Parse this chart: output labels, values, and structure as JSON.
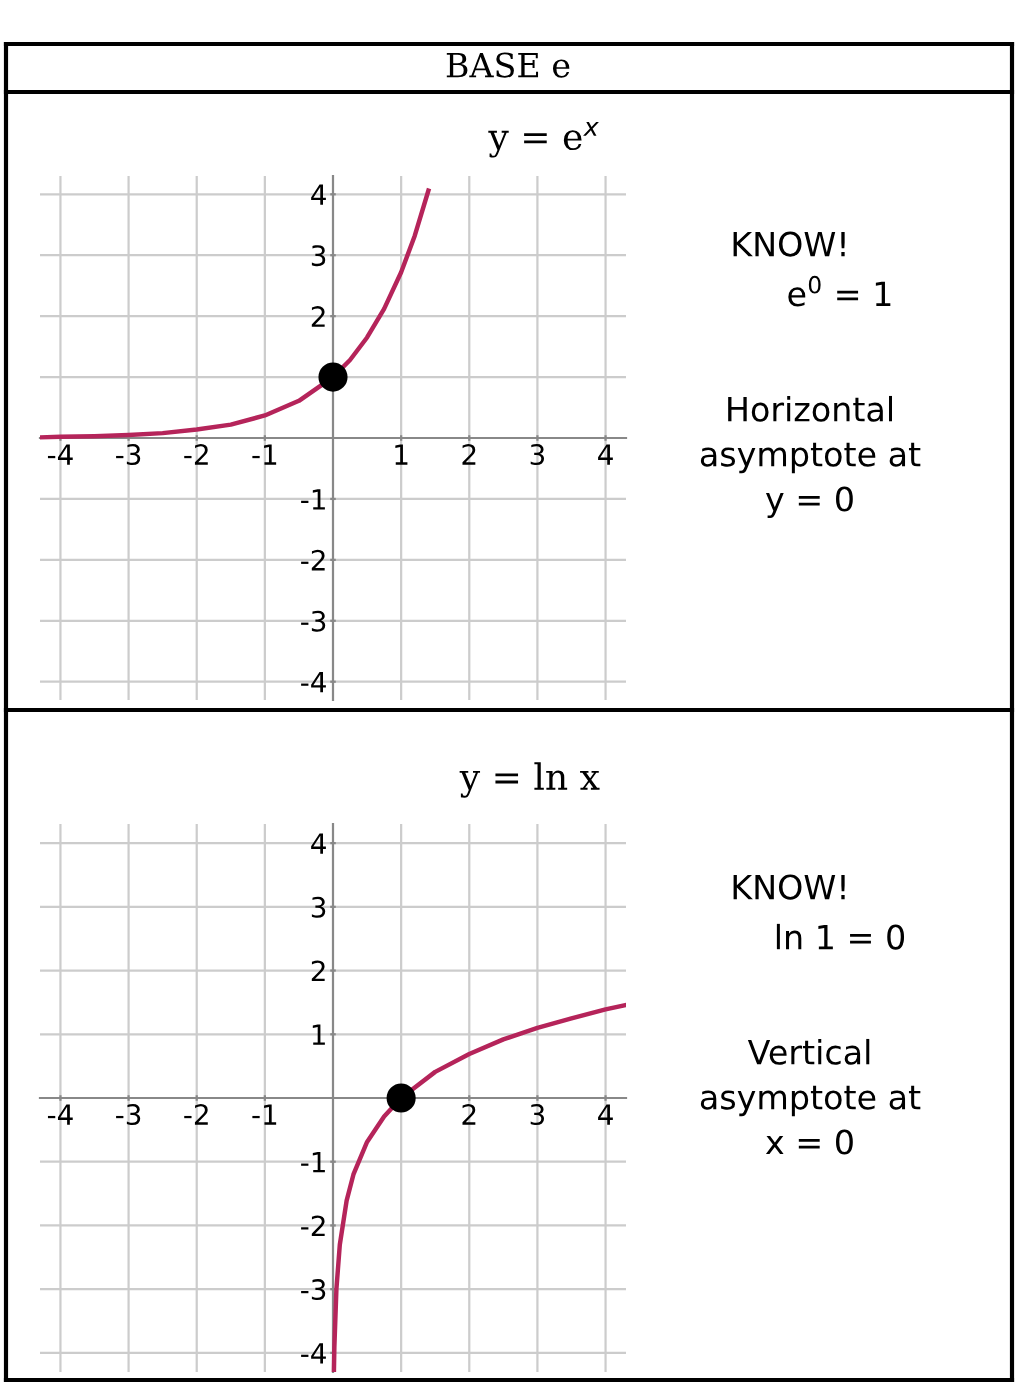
{
  "chart_data": [
    {
      "type": "line",
      "title": "BASE e",
      "subtitle": "y = e$^{x}$",
      "xlim": [
        -4.3,
        4.3
      ],
      "ylim": [
        -4.3,
        4.3
      ],
      "xticks": [
        -4,
        -3,
        -2,
        -1,
        1,
        2,
        3,
        4
      ],
      "yticks": [
        -4,
        -3,
        -2,
        -1,
        {
          "value": 1,
          "label": null
        },
        2,
        3,
        4
      ],
      "grid": true,
      "series": [
        {
          "color": "#b5245a",
          "x": [
            -4.3,
            -4,
            -3.5,
            -3,
            -2.5,
            -2,
            -1.5,
            -1,
            -0.5,
            0,
            0.25,
            0.5,
            0.75,
            1,
            1.2,
            1.4
          ],
          "values": [
            0.01,
            0.02,
            0.03,
            0.05,
            0.08,
            0.14,
            0.22,
            0.37,
            0.61,
            1,
            1.28,
            1.65,
            2.12,
            2.72,
            3.32,
            4.06
          ]
        },
        {
          "type": "scatter",
          "color": "#000000",
          "x": [
            0
          ],
          "values": [
            1
          ],
          "marker": "circle"
        }
      ],
      "annotations": [
        "KNOW!",
        "e$^{0}$ = 1",
        "Horizontal\nasymptote at\ny = 0"
      ]
    },
    {
      "type": "line",
      "title": "y = ln x",
      "xlim": [
        -4.3,
        4.3
      ],
      "ylim": [
        -4.3,
        4.3
      ],
      "xticks": [
        -4,
        -3,
        -2,
        -1,
        {
          "value": 1,
          "label": null
        },
        2,
        3,
        4
      ],
      "yticks": [
        -4,
        -3,
        -2,
        -1,
        1,
        2,
        3,
        4
      ],
      "grid": true,
      "series": [
        {
          "color": "#b5245a",
          "x": [
            0.014,
            0.02,
            0.05,
            0.1,
            0.2,
            0.3,
            0.5,
            0.75,
            1,
            1.5,
            2,
            2.5,
            3,
            3.5,
            4,
            4.3
          ],
          "values": [
            -4.27,
            -3.91,
            -3.0,
            -2.3,
            -1.61,
            -1.2,
            -0.69,
            -0.29,
            0,
            0.41,
            0.69,
            0.92,
            1.1,
            1.25,
            1.39,
            1.46
          ]
        },
        {
          "type": "scatter",
          "color": "#000000",
          "x": [
            1
          ],
          "values": [
            0
          ],
          "marker": "circle"
        }
      ],
      "annotations": [
        "KNOW!",
        "ln 1 = 0",
        "Vertical\nasymptote at\nx = 0"
      ]
    }
  ]
}
